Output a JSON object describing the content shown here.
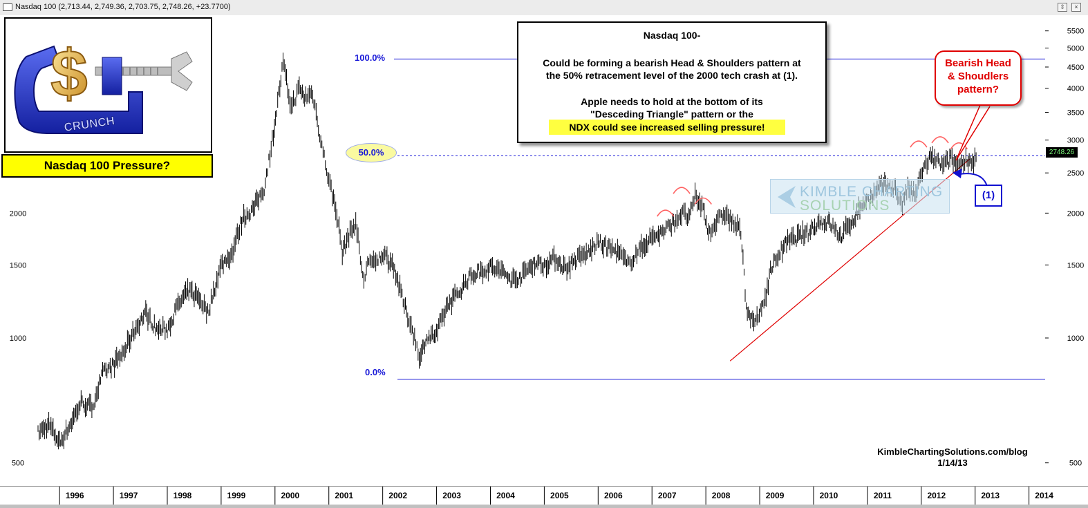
{
  "window": {
    "title": "Nasdaq 100 (2,713.44, 2,749.36, 2,703.75, 2,748.26, +23.7700)",
    "btn_restore": "⇳",
    "btn_close": "×"
  },
  "logo": {
    "text": "CRUNCH",
    "caption": "Nasdaq 100 Pressure?"
  },
  "note": {
    "line1": "Nasdaq 100-",
    "line2": "Could be forming a bearish Head & Shoulders pattern at",
    "line3": "the 50% retracement level of the 2000 tech crash at (1).",
    "line4": "Apple needs to hold at the bottom of its",
    "line5": "\"Desceding Triangle\" pattern or the",
    "line6": "NDX could see increased selling pressure!"
  },
  "bear_callout": {
    "line1": "Bearish Head",
    "line2": "& Shoudlers",
    "line3": "pattern?"
  },
  "point_label": "(1)",
  "watermark": {
    "line1": "KIMBLE CHARTING",
    "line2": "SOLUTIONS"
  },
  "credit": {
    "line1": "KimbleChartingSolutions.com/blog",
    "line2": "1/14/13"
  },
  "last_price_label": "2748.26",
  "colors": {
    "price": "#000000",
    "fib": "#1a1ad8",
    "trend": "#e00000",
    "highlight": "#ffff00"
  },
  "chart_data": {
    "type": "line",
    "title": "Nasdaq 100",
    "scale": "log",
    "ylim": [
      440,
      6000
    ],
    "xlim": [
      1995.6,
      2014.3
    ],
    "y_ticks": [
      500,
      1000,
      1500,
      2000,
      2500,
      3000,
      3500,
      4000,
      4500,
      5000,
      5500
    ],
    "x_ticks": [
      "1996",
      "1997",
      "1998",
      "1999",
      "2000",
      "2001",
      "2002",
      "2003",
      "2004",
      "2005",
      "2006",
      "2007",
      "2008",
      "2009",
      "2010",
      "2011",
      "2012",
      "2013",
      "2014"
    ],
    "series": [
      {
        "x": [
          1995.6,
          1995.8,
          1996.0,
          1996.2,
          1996.4,
          1996.6,
          1996.8,
          1997.0,
          1997.2,
          1997.4,
          1997.6,
          1997.8,
          1998.0,
          1998.2,
          1998.4,
          1998.6,
          1998.75,
          1998.9,
          1999.0,
          1999.2,
          1999.4,
          1999.6,
          1999.8,
          1999.95,
          2000.05,
          2000.15,
          2000.3,
          2000.45,
          2000.55,
          2000.7,
          2000.85,
          2001.0,
          2001.15,
          2001.25,
          2001.35,
          2001.5,
          2001.65,
          2001.72,
          2001.85,
          2002.0,
          2002.2,
          2002.4,
          2002.55,
          2002.7,
          2002.8,
          2003.0,
          2003.2,
          2003.4,
          2003.6,
          2003.8,
          2004.0,
          2004.2,
          2004.4,
          2004.6,
          2004.8,
          2005.0,
          2005.2,
          2005.4,
          2005.6,
          2005.8,
          2006.0,
          2006.2,
          2006.4,
          2006.55,
          2006.7,
          2006.9,
          2007.0,
          2007.2,
          2007.4,
          2007.55,
          2007.7,
          2007.8,
          2007.95,
          2008.05,
          2008.2,
          2008.35,
          2008.5,
          2008.65,
          2008.75,
          2008.85,
          2008.95,
          2009.1,
          2009.2,
          2009.3,
          2009.5,
          2009.7,
          2009.9,
          2010.0,
          2010.1,
          2010.3,
          2010.5,
          2010.7,
          2010.9,
          2011.1,
          2011.3,
          2011.5,
          2011.65,
          2011.75,
          2011.9,
          2012.0,
          2012.15,
          2012.25,
          2012.4,
          2012.55,
          2012.7,
          2012.85,
          2012.95,
          2013.04
        ],
        "y": [
          590,
          620,
          560,
          620,
          700,
          680,
          820,
          860,
          930,
          1050,
          1150,
          1050,
          1050,
          1200,
          1300,
          1250,
          1150,
          1350,
          1500,
          1600,
          1950,
          2050,
          2300,
          3000,
          3700,
          4600,
          3600,
          4000,
          3800,
          3900,
          3000,
          2400,
          2000,
          1600,
          1750,
          1900,
          1350,
          1550,
          1500,
          1600,
          1500,
          1200,
          1050,
          890,
          1000,
          1020,
          1200,
          1280,
          1400,
          1450,
          1480,
          1450,
          1380,
          1420,
          1520,
          1500,
          1560,
          1470,
          1550,
          1600,
          1700,
          1650,
          1600,
          1500,
          1600,
          1700,
          1750,
          1800,
          1900,
          2000,
          1950,
          2200,
          2050,
          1800,
          1900,
          2000,
          1900,
          1800,
          1200,
          1100,
          1100,
          1250,
          1450,
          1550,
          1700,
          1750,
          1800,
          1850,
          1900,
          1900,
          1750,
          1900,
          2100,
          2200,
          2350,
          2300,
          2100,
          2300,
          2200,
          2500,
          2700,
          2700,
          2600,
          2700,
          2600,
          2720,
          2650,
          2748
        ]
      }
    ],
    "annotations": [
      {
        "type": "fib",
        "level": "100.0%",
        "value": 4705
      },
      {
        "type": "fib",
        "level": "50.0%",
        "value": 2750
      },
      {
        "type": "fib",
        "level": "0.0%",
        "value": 795
      },
      {
        "type": "trendline",
        "from": [
          2008.45,
          880
        ],
        "to": [
          2012.9,
          2700
        ]
      }
    ]
  }
}
